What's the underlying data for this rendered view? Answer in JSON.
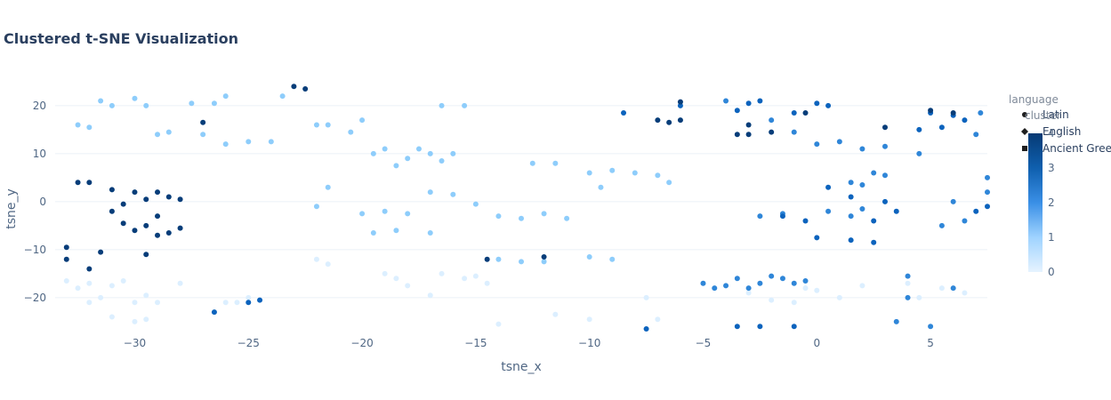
{
  "chart_data": {
    "type": "scatter",
    "title": "Clustered t-SNE Visualization",
    "xlabel": "tsne_x",
    "ylabel": "tsne_y",
    "xlim": [
      -33.5,
      7.5
    ],
    "ylim": [
      -26.5,
      23.5
    ],
    "x_ticks": [
      -30,
      -25,
      -20,
      -15,
      -10,
      -5,
      0,
      5
    ],
    "y_ticks": [
      -20,
      -10,
      0,
      10,
      20
    ],
    "x_tick_labels": [
      "−30",
      "−25",
      "−20",
      "−15",
      "−10",
      "−5",
      "0",
      "5"
    ],
    "y_tick_labels": [
      "−20",
      "−10",
      "0",
      "10",
      "20"
    ],
    "grid": true,
    "legend": {
      "title": "language",
      "position": "right",
      "items": [
        {
          "label": "Latin",
          "symbol": "circle"
        },
        {
          "label": "English",
          "symbol": "diamond"
        },
        {
          "label": "Ancient Gree",
          "symbol": "square"
        }
      ]
    },
    "colorbar": {
      "title": "cluster",
      "ticks": [
        "0",
        "1",
        "2",
        "3",
        "4"
      ],
      "colorscale": [
        "#e6f3ff",
        "#9fd3ff",
        "#3a8fe6",
        "#0f5fae",
        "#063a74"
      ]
    },
    "series_by_cluster": [
      {
        "cluster": 0,
        "points": [
          [
            -33,
            -16.5
          ],
          [
            -32.5,
            -18
          ],
          [
            -32,
            -17
          ],
          [
            -31.5,
            -20
          ],
          [
            -31,
            -17.5
          ],
          [
            -30.5,
            -16.5
          ],
          [
            -30,
            -21
          ],
          [
            -29.5,
            -19.5
          ],
          [
            -29,
            -21
          ],
          [
            -28,
            -17
          ],
          [
            -32,
            -21
          ],
          [
            -31,
            -24
          ],
          [
            -30,
            -25
          ],
          [
            -29.5,
            -24.5
          ],
          [
            -25,
            -20
          ],
          [
            -25.5,
            -21
          ],
          [
            -26,
            -21
          ],
          [
            -22,
            -12
          ],
          [
            -21.5,
            -13
          ],
          [
            -19,
            -15
          ],
          [
            -18.5,
            -16
          ],
          [
            -18,
            -17.5
          ],
          [
            -17,
            -19.5
          ],
          [
            -16.5,
            -15
          ],
          [
            -15.5,
            -16
          ],
          [
            -15,
            -15.5
          ],
          [
            -14.5,
            -17
          ],
          [
            -14,
            -25.5
          ],
          [
            -11.5,
            -23.5
          ],
          [
            -10,
            -24.5
          ],
          [
            -7.5,
            -20
          ],
          [
            -7,
            -24.5
          ],
          [
            -3,
            -19
          ],
          [
            -2,
            -20.5
          ],
          [
            -1,
            -21
          ],
          [
            -0.5,
            -18
          ],
          [
            0,
            -18.5
          ],
          [
            1,
            -20
          ],
          [
            2,
            -17.5
          ],
          [
            4,
            -17
          ],
          [
            4.5,
            -20
          ],
          [
            5.5,
            -18
          ],
          [
            6.5,
            -19
          ]
        ]
      },
      {
        "cluster": 1,
        "points": [
          [
            -32.5,
            16
          ],
          [
            -32,
            15.5
          ],
          [
            -31.5,
            21
          ],
          [
            -31,
            20
          ],
          [
            -30,
            21.5
          ],
          [
            -29.5,
            20
          ],
          [
            -29,
            14
          ],
          [
            -28.5,
            14.5
          ],
          [
            -27.5,
            20.5
          ],
          [
            -27,
            14
          ],
          [
            -26.5,
            20.5
          ],
          [
            -26,
            22
          ],
          [
            -26,
            12
          ],
          [
            -25,
            12.5
          ],
          [
            -24,
            12.5
          ],
          [
            -23.5,
            22
          ],
          [
            -22,
            16
          ],
          [
            -21.5,
            16
          ],
          [
            -21.5,
            3
          ],
          [
            -22,
            -1
          ],
          [
            -20.5,
            14.5
          ],
          [
            -20,
            17
          ],
          [
            -19.5,
            10
          ],
          [
            -19,
            11
          ],
          [
            -18.5,
            7.5
          ],
          [
            -18,
            9
          ],
          [
            -17.5,
            11
          ],
          [
            -17,
            10
          ],
          [
            -16.5,
            8.5
          ],
          [
            -16,
            10
          ],
          [
            -16.5,
            20
          ],
          [
            -15.5,
            20
          ],
          [
            -20,
            -2.5
          ],
          [
            -19,
            -2
          ],
          [
            -18,
            -2.5
          ],
          [
            -17,
            2
          ],
          [
            -16,
            1.5
          ],
          [
            -15,
            -0.5
          ],
          [
            -19.5,
            -6.5
          ],
          [
            -18.5,
            -6
          ],
          [
            -17,
            -6.5
          ],
          [
            -14,
            -3
          ],
          [
            -13,
            -3.5
          ],
          [
            -12.5,
            8
          ],
          [
            -12,
            -2.5
          ],
          [
            -11,
            -3.5
          ],
          [
            -11.5,
            8
          ],
          [
            -10,
            6
          ],
          [
            -9.5,
            3
          ],
          [
            -9,
            6.5
          ],
          [
            -8,
            6
          ],
          [
            -7,
            5.5
          ],
          [
            -6.5,
            4
          ],
          [
            -10,
            -11.5
          ],
          [
            -9,
            -12
          ],
          [
            -13,
            -12.5
          ],
          [
            -12,
            -12.5
          ],
          [
            -14,
            -12
          ]
        ]
      },
      {
        "cluster": 2,
        "points": [
          [
            -5,
            -17
          ],
          [
            -4.5,
            -18
          ],
          [
            -4,
            -17.5
          ],
          [
            -3.5,
            -16
          ],
          [
            -3,
            -18
          ],
          [
            -2.5,
            -17
          ],
          [
            -2,
            -15.5
          ],
          [
            -1.5,
            -16
          ],
          [
            -1,
            -17
          ],
          [
            -0.5,
            -16.5
          ],
          [
            -4,
            21
          ],
          [
            2.5,
            6
          ],
          [
            3,
            5.5
          ],
          [
            1.5,
            4
          ],
          [
            2,
            3.5
          ],
          [
            4,
            -15.5
          ],
          [
            4,
            -20
          ],
          [
            3.5,
            -25
          ],
          [
            5,
            -26
          ],
          [
            6,
            -18
          ],
          [
            -2,
            17
          ],
          [
            -1,
            14.5
          ],
          [
            0,
            12
          ],
          [
            1,
            12.5
          ],
          [
            2,
            11
          ],
          [
            3,
            11.5
          ],
          [
            4.5,
            10
          ],
          [
            7,
            14
          ],
          [
            7.2,
            18.5
          ],
          [
            7.5,
            5
          ],
          [
            7.5,
            2
          ],
          [
            5.5,
            -5
          ],
          [
            6.5,
            -4
          ],
          [
            -2.5,
            -3
          ],
          [
            -1.5,
            -2.5
          ],
          [
            0.5,
            -2
          ],
          [
            1.5,
            -3
          ],
          [
            2,
            -1.5
          ],
          [
            6,
            0
          ]
        ]
      },
      {
        "cluster": 3,
        "points": [
          [
            -3,
            20.5
          ],
          [
            -2.5,
            21
          ],
          [
            -3.5,
            19
          ],
          [
            -1,
            18.5
          ],
          [
            0,
            20.5
          ],
          [
            0.5,
            20
          ],
          [
            -1.5,
            -3
          ],
          [
            -0.5,
            -4
          ],
          [
            0,
            -7.5
          ],
          [
            0.5,
            3
          ],
          [
            1.5,
            1
          ],
          [
            2.5,
            -4
          ],
          [
            3,
            0
          ],
          [
            3.5,
            -2
          ],
          [
            4.5,
            15
          ],
          [
            5,
            18.5
          ],
          [
            6,
            18
          ],
          [
            6.5,
            17
          ],
          [
            5.5,
            15.5
          ],
          [
            -2.5,
            -26
          ],
          [
            -3.5,
            -26
          ],
          [
            -1,
            -26
          ],
          [
            -7.5,
            -26.5
          ],
          [
            -24.5,
            -20.5
          ],
          [
            -25,
            -21
          ],
          [
            -26.5,
            -23
          ],
          [
            1.5,
            -8
          ],
          [
            2.5,
            -8.5
          ],
          [
            -6,
            20
          ],
          [
            -8.5,
            18.5
          ],
          [
            7,
            -2
          ],
          [
            7.5,
            -1
          ]
        ]
      },
      {
        "cluster": 4,
        "points": [
          [
            -32.5,
            4
          ],
          [
            -32,
            4
          ],
          [
            -31,
            2.5
          ],
          [
            -30,
            2
          ],
          [
            -29.5,
            0.5
          ],
          [
            -30.5,
            -0.5
          ],
          [
            -31,
            -2
          ],
          [
            -29,
            2
          ],
          [
            -28.5,
            1
          ],
          [
            -28,
            0.5
          ],
          [
            -29,
            -3
          ],
          [
            -29.5,
            -5
          ],
          [
            -29,
            -7
          ],
          [
            -28.5,
            -6.5
          ],
          [
            -28,
            -5.5
          ],
          [
            -30.5,
            -4.5
          ],
          [
            -30,
            -6
          ],
          [
            -31.5,
            -10.5
          ],
          [
            -33,
            -9.5
          ],
          [
            -33,
            -12
          ],
          [
            -32,
            -14
          ],
          [
            -29.5,
            -11
          ],
          [
            -27,
            16.5
          ],
          [
            -7,
            17
          ],
          [
            -6.5,
            16.5
          ],
          [
            -6,
            17
          ],
          [
            -3.5,
            14
          ],
          [
            -3,
            14
          ],
          [
            -2,
            14.5
          ],
          [
            -3,
            16
          ],
          [
            -23,
            24
          ],
          [
            -22.5,
            23.5
          ],
          [
            -6,
            20.8
          ],
          [
            -12,
            -11.5
          ],
          [
            -14.5,
            -12
          ],
          [
            5,
            19
          ],
          [
            6,
            18.5
          ],
          [
            3,
            15.5
          ],
          [
            -0.5,
            18.5
          ]
        ]
      }
    ]
  }
}
